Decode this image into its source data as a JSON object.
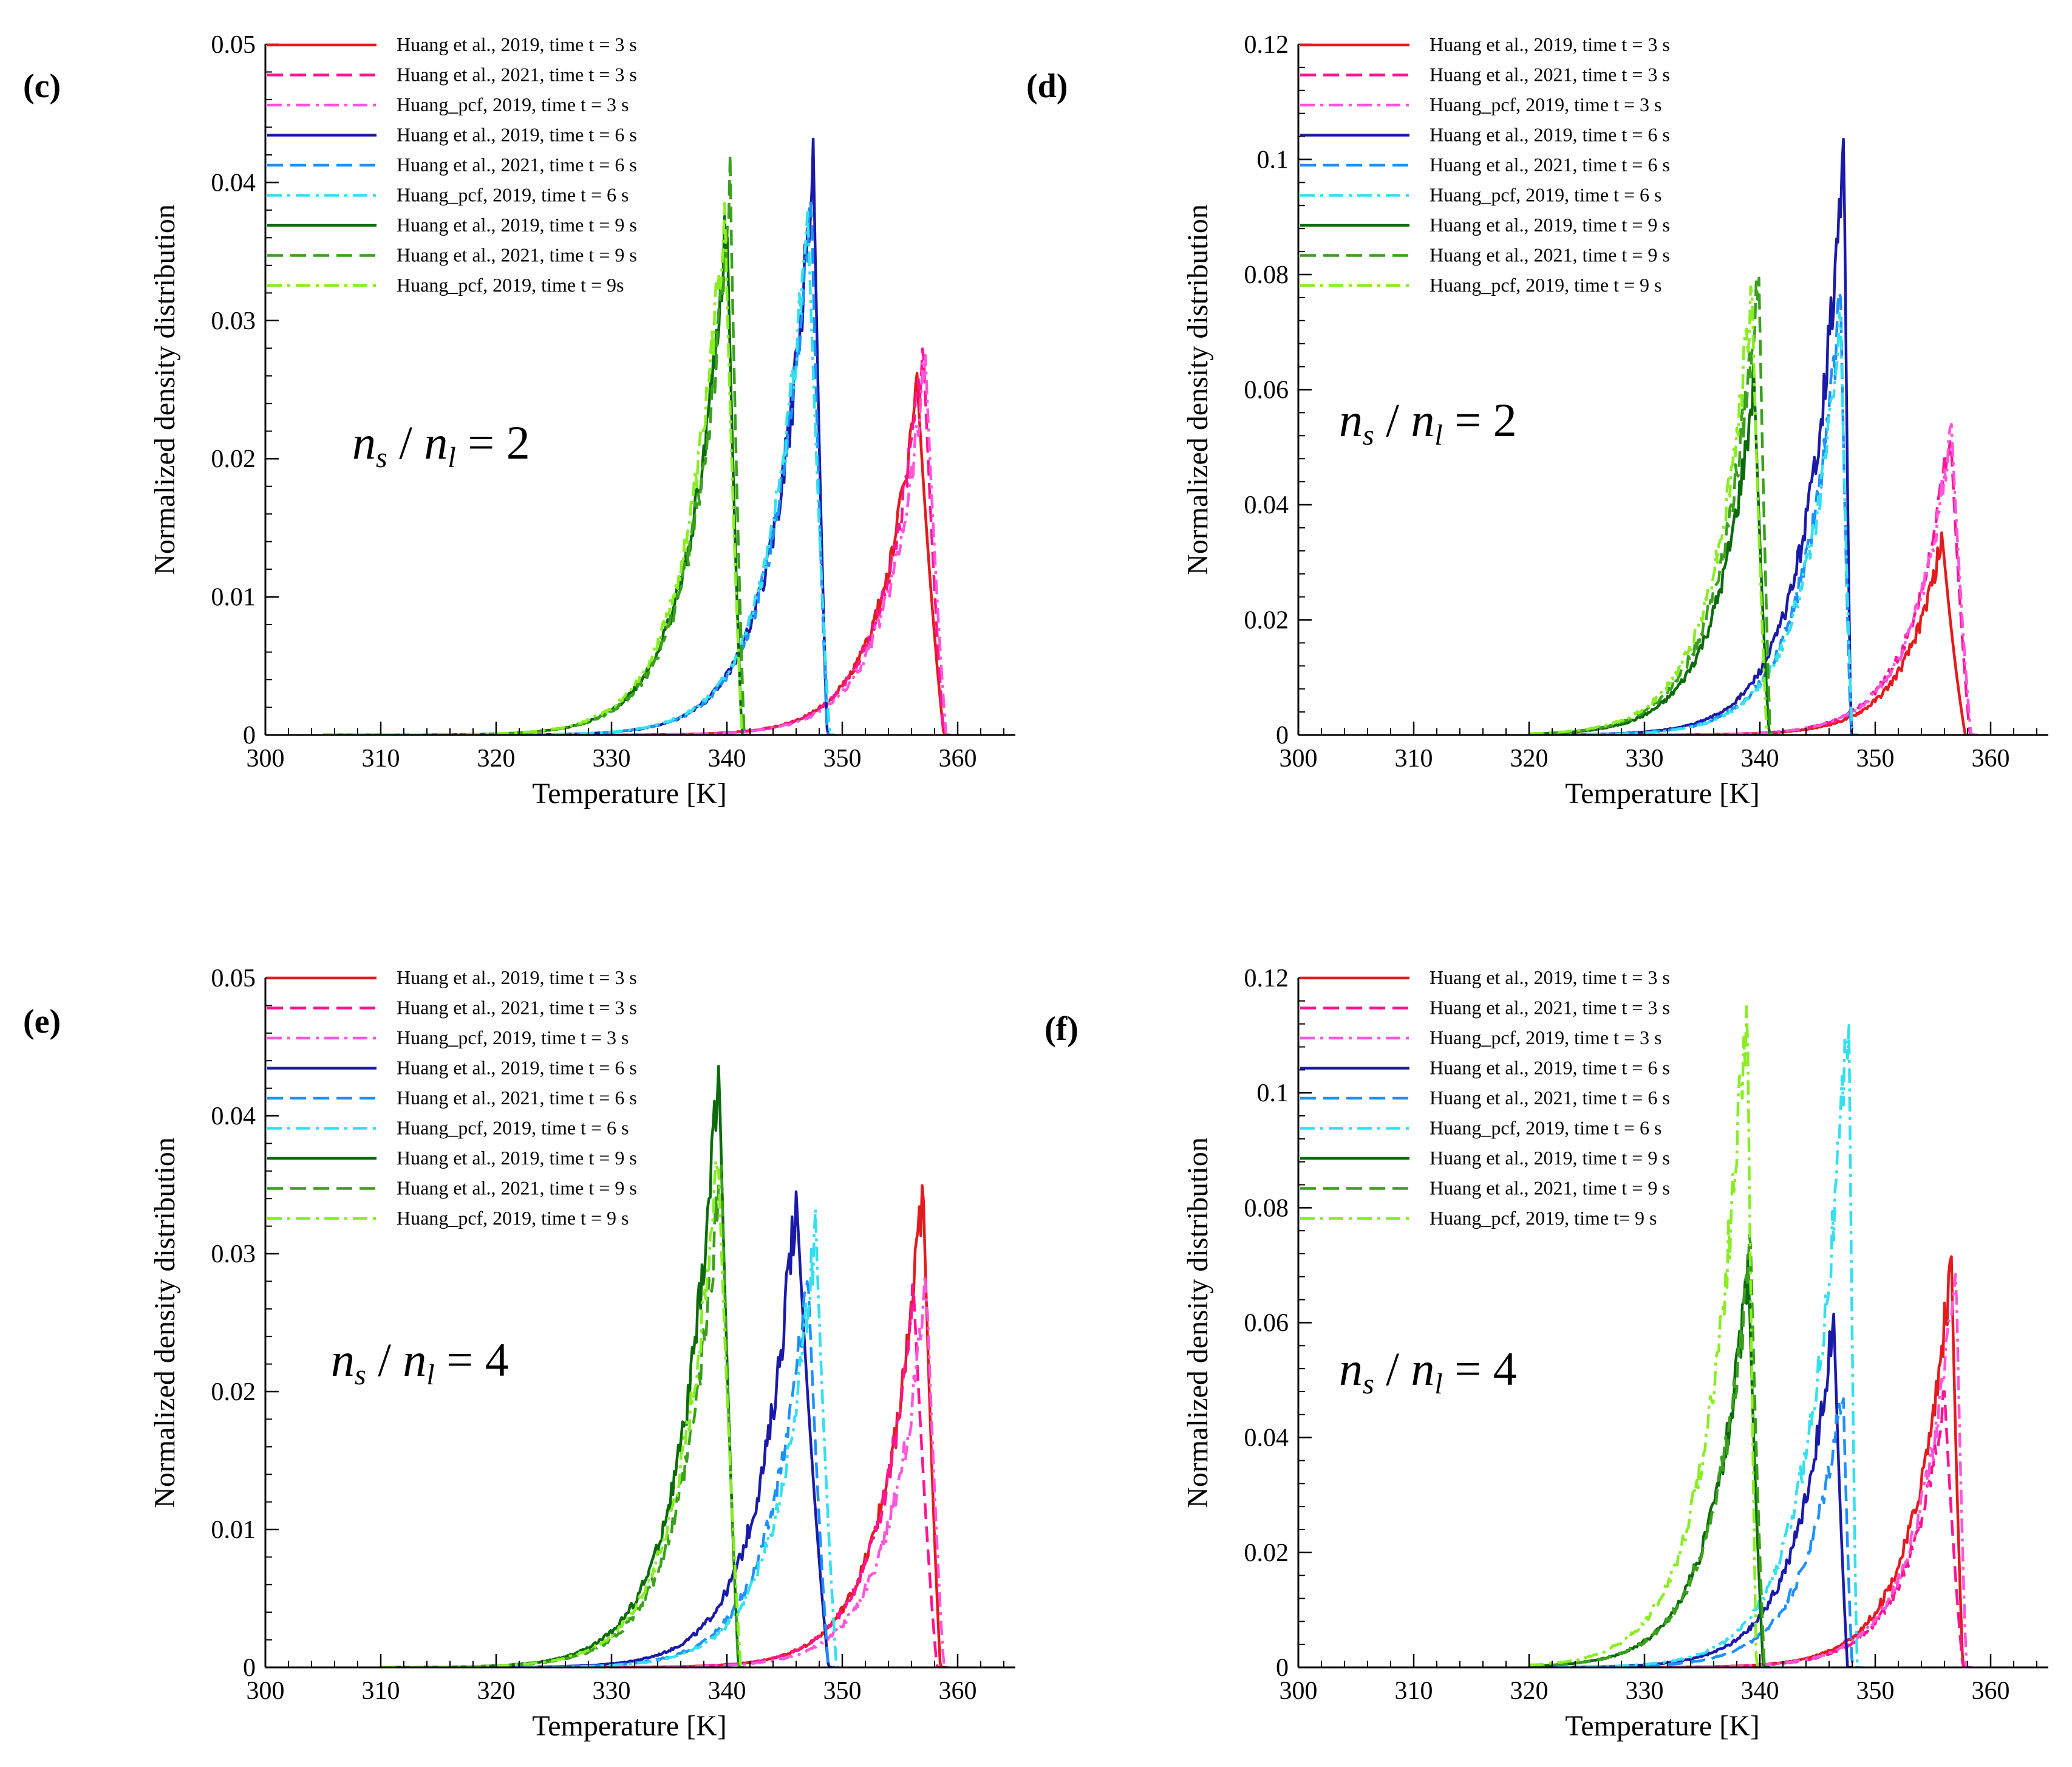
{
  "chart_data": [
    {
      "panel": "(c)",
      "type": "line",
      "annotation": {
        "n": "n",
        "sub_s": "s",
        "sub_l": "l",
        "eq": "= 2"
      },
      "xlabel": "Temperature [K]",
      "ylabel": "Normalized density distribution",
      "xlim": [
        300,
        365
      ],
      "ylim": [
        0,
        0.05
      ],
      "xticks": [
        "300",
        "310",
        "320",
        "330",
        "340",
        "350",
        "360"
      ],
      "yticks": [
        "0",
        "0.01",
        "0.02",
        "0.03",
        "0.04",
        "0.05"
      ],
      "series": [
        {
          "name": "Huang et al., 2019, time t = 3 s",
          "color": "#e41a1c",
          "dash": "solid",
          "peak_x": 356.5,
          "peak_y": 0.0255,
          "lo": 305,
          "hi": 358.8
        },
        {
          "name": "Huang et al., 2021, time t = 3 s",
          "color": "#ff1493",
          "dash": "dashed",
          "peak_x": 357.0,
          "peak_y": 0.0285,
          "lo": 305,
          "hi": 358.8
        },
        {
          "name": "Huang_pcf, 2019, time t = 3 s",
          "color": "#ff55dd",
          "dash": "dashdot",
          "peak_x": 357.2,
          "peak_y": 0.0275,
          "lo": 305,
          "hi": 359.0
        },
        {
          "name": "Huang et al., 2019, time t = 6 s",
          "color": "#1a1aa8",
          "dash": "solid",
          "peak_x": 347.5,
          "peak_y": 0.0418,
          "lo": 305,
          "hi": 348.7
        },
        {
          "name": "Huang et al., 2021, time t = 6 s",
          "color": "#1e90ff",
          "dash": "dashed",
          "peak_x": 347.3,
          "peak_y": 0.0395,
          "lo": 305,
          "hi": 348.7
        },
        {
          "name": "Huang_pcf, 2019, time t = 6 s",
          "color": "#33e0f0",
          "dash": "dashdot",
          "peak_x": 347.0,
          "peak_y": 0.038,
          "lo": 305,
          "hi": 348.9
        },
        {
          "name": "Huang et al., 2019, time t = 9 s",
          "color": "#0a6b0a",
          "dash": "solid",
          "peak_x": 340.0,
          "peak_y": 0.0375,
          "lo": 305,
          "hi": 341.3
        },
        {
          "name": "Huang et al., 2021, time t = 9 s",
          "color": "#3aa01e",
          "dash": "dashed",
          "peak_x": 340.3,
          "peak_y": 0.0395,
          "lo": 305,
          "hi": 341.5
        },
        {
          "name": "Huang_pcf, 2019, time t = 9s",
          "color": "#88ee22",
          "dash": "dashdot",
          "peak_x": 339.8,
          "peak_y": 0.0385,
          "lo": 305,
          "hi": 341.3
        }
      ]
    },
    {
      "panel": "(d)",
      "type": "line",
      "annotation": {
        "n": "n",
        "sub_s": "s",
        "sub_l": "l",
        "eq": "= 2"
      },
      "xlabel": "Temperature [K]",
      "ylabel": "Normalized density distribution",
      "xlim": [
        300,
        365
      ],
      "ylim": [
        0,
        0.12
      ],
      "xticks": [
        "300",
        "310",
        "320",
        "330",
        "340",
        "350",
        "360"
      ],
      "yticks": [
        "0",
        "0.02",
        "0.04",
        "0.06",
        "0.08",
        "0.1",
        "0.12"
      ],
      "series": [
        {
          "name": "Huang et al., 2019, time t = 3 s",
          "color": "#e41a1c",
          "dash": "solid",
          "peak_x": 355.8,
          "peak_y": 0.0345,
          "lo": 320,
          "hi": 357.8
        },
        {
          "name": "Huang et al., 2021, time t = 3 s",
          "color": "#ff1493",
          "dash": "dashed",
          "peak_x": 356.5,
          "peak_y": 0.0535,
          "lo": 320,
          "hi": 358.2
        },
        {
          "name": "Huang_pcf, 2019, time t = 3 s",
          "color": "#ff55dd",
          "dash": "dashdot",
          "peak_x": 356.6,
          "peak_y": 0.054,
          "lo": 320,
          "hi": 358.3
        },
        {
          "name": "Huang et al., 2019, time t = 6 s",
          "color": "#1a1aa8",
          "dash": "solid",
          "peak_x": 347.3,
          "peak_y": 0.1015,
          "lo": 320,
          "hi": 347.9
        },
        {
          "name": "Huang et al., 2021, time t = 6 s",
          "color": "#1e90ff",
          "dash": "dashed",
          "peak_x": 347.0,
          "peak_y": 0.076,
          "lo": 320,
          "hi": 347.9
        },
        {
          "name": "Huang_pcf, 2019, time t = 6 s",
          "color": "#33e0f0",
          "dash": "dashdot",
          "peak_x": 347.0,
          "peak_y": 0.072,
          "lo": 320,
          "hi": 348.0
        },
        {
          "name": "Huang et al., 2019, time t = 9 s",
          "color": "#0a6b0a",
          "dash": "solid",
          "peak_x": 339.5,
          "peak_y": 0.062,
          "lo": 320,
          "hi": 340.8
        },
        {
          "name": "Huang et al., 2021, time t = 9 s",
          "color": "#3aa01e",
          "dash": "dashed",
          "peak_x": 339.9,
          "peak_y": 0.0815,
          "lo": 320,
          "hi": 340.9
        },
        {
          "name": "Huang_pcf, 2019, time t = 9 s",
          "color": "#88ee22",
          "dash": "dashdot",
          "peak_x": 339.3,
          "peak_y": 0.078,
          "lo": 320,
          "hi": 340.6
        }
      ]
    },
    {
      "panel": "(e)",
      "type": "line",
      "annotation": {
        "n": "n",
        "sub_s": "s",
        "sub_l": "l",
        "eq": "= 4"
      },
      "xlabel": "Temperature [K]",
      "ylabel": "Normalized density distribution",
      "xlim": [
        300,
        365
      ],
      "ylim": [
        0,
        0.05
      ],
      "xticks": [
        "300",
        "310",
        "320",
        "330",
        "340",
        "350",
        "360"
      ],
      "yticks": [
        "0",
        "0.01",
        "0.02",
        "0.03",
        "0.04",
        "0.05"
      ],
      "series": [
        {
          "name": "Huang et al., 2019, time t = 3 s",
          "color": "#e41a1c",
          "dash": "solid",
          "peak_x": 357.0,
          "peak_y": 0.035,
          "lo": 310,
          "hi": 358.5
        },
        {
          "name": "Huang et al., 2021, time t = 3 s",
          "color": "#ff1493",
          "dash": "dashed",
          "peak_x": 356.2,
          "peak_y": 0.027,
          "lo": 310,
          "hi": 358.2
        },
        {
          "name": "Huang_pcf, 2019, time t = 3 s",
          "color": "#ff55dd",
          "dash": "dashdot",
          "peak_x": 357.3,
          "peak_y": 0.028,
          "lo": 310,
          "hi": 358.8
        },
        {
          "name": "Huang et al., 2019, time t = 6 s",
          "color": "#1a1aa8",
          "dash": "solid",
          "peak_x": 346.0,
          "peak_y": 0.0345,
          "lo": 310,
          "hi": 348.8
        },
        {
          "name": "Huang et al., 2021, time t = 6 s",
          "color": "#1e90ff",
          "dash": "dashed",
          "peak_x": 347.0,
          "peak_y": 0.029,
          "lo": 310,
          "hi": 348.8
        },
        {
          "name": "Huang_pcf, 2019, time t = 6 s",
          "color": "#33e0f0",
          "dash": "dashdot",
          "peak_x": 347.7,
          "peak_y": 0.032,
          "lo": 310,
          "hi": 349.5
        },
        {
          "name": "Huang et al., 2019, time t = 9 s",
          "color": "#0a6b0a",
          "dash": "solid",
          "peak_x": 339.3,
          "peak_y": 0.0438,
          "lo": 310,
          "hi": 341.0
        },
        {
          "name": "Huang et al., 2021, time t = 9 s",
          "color": "#3aa01e",
          "dash": "dashed",
          "peak_x": 339.5,
          "peak_y": 0.037,
          "lo": 310,
          "hi": 341.0
        },
        {
          "name": "Huang_pcf, 2019, time t = 9 s",
          "color": "#88ee22",
          "dash": "dashdot",
          "peak_x": 339.2,
          "peak_y": 0.038,
          "lo": 310,
          "hi": 341.2
        }
      ]
    },
    {
      "panel": "(f)",
      "type": "line",
      "annotation": {
        "n": "n",
        "sub_s": "s",
        "sub_l": "l",
        "eq": "= 4"
      },
      "xlabel": "Temperature [K]",
      "ylabel": "Normalized density distribution",
      "xlim": [
        300,
        365
      ],
      "ylim": [
        0,
        0.12
      ],
      "xticks": [
        "300",
        "310",
        "320",
        "330",
        "340",
        "350",
        "360"
      ],
      "yticks": [
        "0",
        "0.02",
        "0.04",
        "0.06",
        "0.08",
        "0.1",
        "0.12"
      ],
      "series": [
        {
          "name": "Huang et al., 2019, time t = 3 s",
          "color": "#e41a1c",
          "dash": "solid",
          "peak_x": 356.6,
          "peak_y": 0.0715,
          "lo": 320,
          "hi": 357.6
        },
        {
          "name": "Huang et al., 2021, time t = 3 s",
          "color": "#ff1493",
          "dash": "dashed",
          "peak_x": 356.0,
          "peak_y": 0.048,
          "lo": 320,
          "hi": 357.6
        },
        {
          "name": "Huang_pcf, 2019, time t = 3 s",
          "color": "#ff55dd",
          "dash": "dashdot",
          "peak_x": 357.0,
          "peak_y": 0.07,
          "lo": 320,
          "hi": 357.9
        },
        {
          "name": "Huang et al., 2019, time t = 6 s",
          "color": "#1a1aa8",
          "dash": "solid",
          "peak_x": 346.4,
          "peak_y": 0.0615,
          "lo": 320,
          "hi": 347.6
        },
        {
          "name": "Huang et al., 2021, time t = 6 s",
          "color": "#1e90ff",
          "dash": "dashed",
          "peak_x": 347.2,
          "peak_y": 0.05,
          "lo": 320,
          "hi": 348.0
        },
        {
          "name": "Huang_pcf, 2019, time t = 6 s",
          "color": "#33e0f0",
          "dash": "dashdot",
          "peak_x": 347.7,
          "peak_y": 0.116,
          "lo": 320,
          "hi": 348.4
        },
        {
          "name": "Huang et al., 2019, time t = 9 s",
          "color": "#0a6b0a",
          "dash": "solid",
          "peak_x": 339.0,
          "peak_y": 0.07,
          "lo": 320,
          "hi": 340.3
        },
        {
          "name": "Huang et al., 2021, time t = 9 s",
          "color": "#3aa01e",
          "dash": "dashed",
          "peak_x": 339.2,
          "peak_y": 0.0735,
          "lo": 320,
          "hi": 340.4
        },
        {
          "name": "Huang_pcf, 2019, time t= 9 s",
          "color": "#88ee22",
          "dash": "dashdot",
          "peak_x": 338.9,
          "peak_y": 0.119,
          "lo": 320,
          "hi": 339.7
        }
      ]
    }
  ]
}
